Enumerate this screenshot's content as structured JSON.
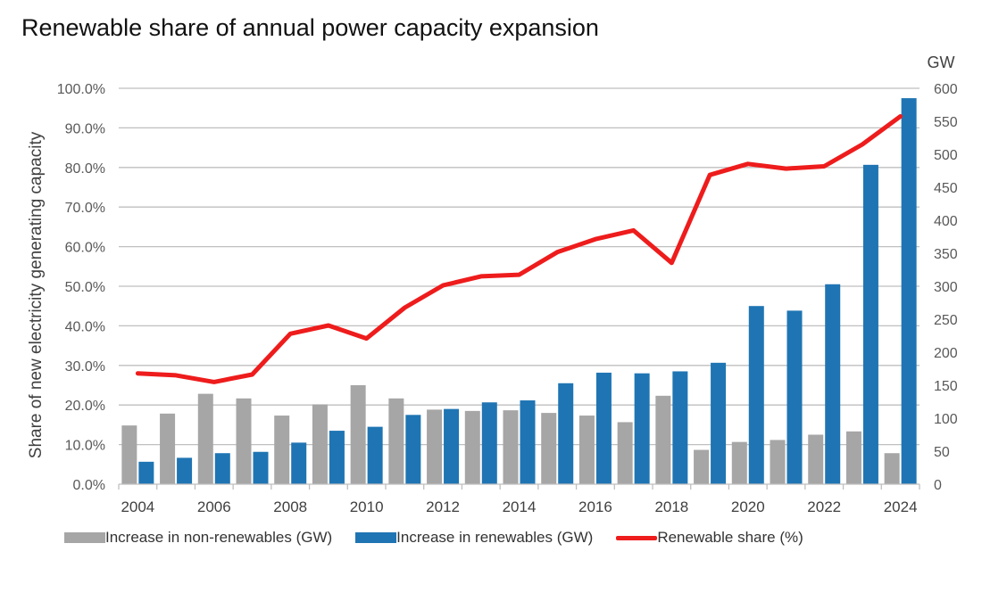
{
  "chart_data": {
    "type": "bar",
    "title": "Renewable share of annual power capacity expansion",
    "ylabel": "Share of new electricity generating capacity",
    "y2label": "GW",
    "x": [
      2004,
      2005,
      2006,
      2007,
      2008,
      2009,
      2010,
      2011,
      2012,
      2013,
      2014,
      2015,
      2016,
      2017,
      2018,
      2019,
      2020,
      2021,
      2022,
      2023,
      2024
    ],
    "xticks": [
      "2004",
      "2006",
      "2008",
      "2010",
      "2012",
      "2014",
      "2016",
      "2018",
      "2020",
      "2022",
      "2024"
    ],
    "ylim": [
      0,
      100
    ],
    "y2lim": [
      0,
      600
    ],
    "yticks": [
      "0.0%",
      "10.0%",
      "20.0%",
      "30.0%",
      "40.0%",
      "50.0%",
      "60.0%",
      "70.0%",
      "80.0%",
      "90.0%",
      "100.0%"
    ],
    "y2ticks": [
      "0",
      "50",
      "100",
      "150",
      "200",
      "250",
      "300",
      "350",
      "400",
      "450",
      "500",
      "550",
      "600"
    ],
    "series": [
      {
        "name": "Increase in non-renewables (GW)",
        "type": "bar",
        "axis": "right",
        "color": "#a6a6a6",
        "values": [
          89,
          107,
          137,
          130,
          104,
          121,
          150,
          130,
          113,
          111,
          112,
          108,
          104,
          94,
          134,
          52,
          64,
          67,
          75,
          80,
          47
        ]
      },
      {
        "name": "Increase in renewables (GW)",
        "type": "bar",
        "axis": "right",
        "color": "#1f75b3",
        "values": [
          34,
          40,
          47,
          49,
          63,
          81,
          87,
          105,
          114,
          124,
          127,
          153,
          169,
          168,
          171,
          184,
          270,
          263,
          303,
          484,
          585
        ]
      },
      {
        "name": "Renewable share (%)",
        "type": "line",
        "axis": "left",
        "color": "#ee1c1c",
        "values": [
          28.0,
          27.5,
          25.8,
          27.7,
          38.0,
          40.1,
          36.8,
          44.6,
          50.2,
          52.5,
          52.9,
          58.6,
          61.9,
          64.1,
          55.9,
          78.1,
          80.9,
          79.7,
          80.3,
          85.8,
          92.9
        ]
      }
    ]
  }
}
